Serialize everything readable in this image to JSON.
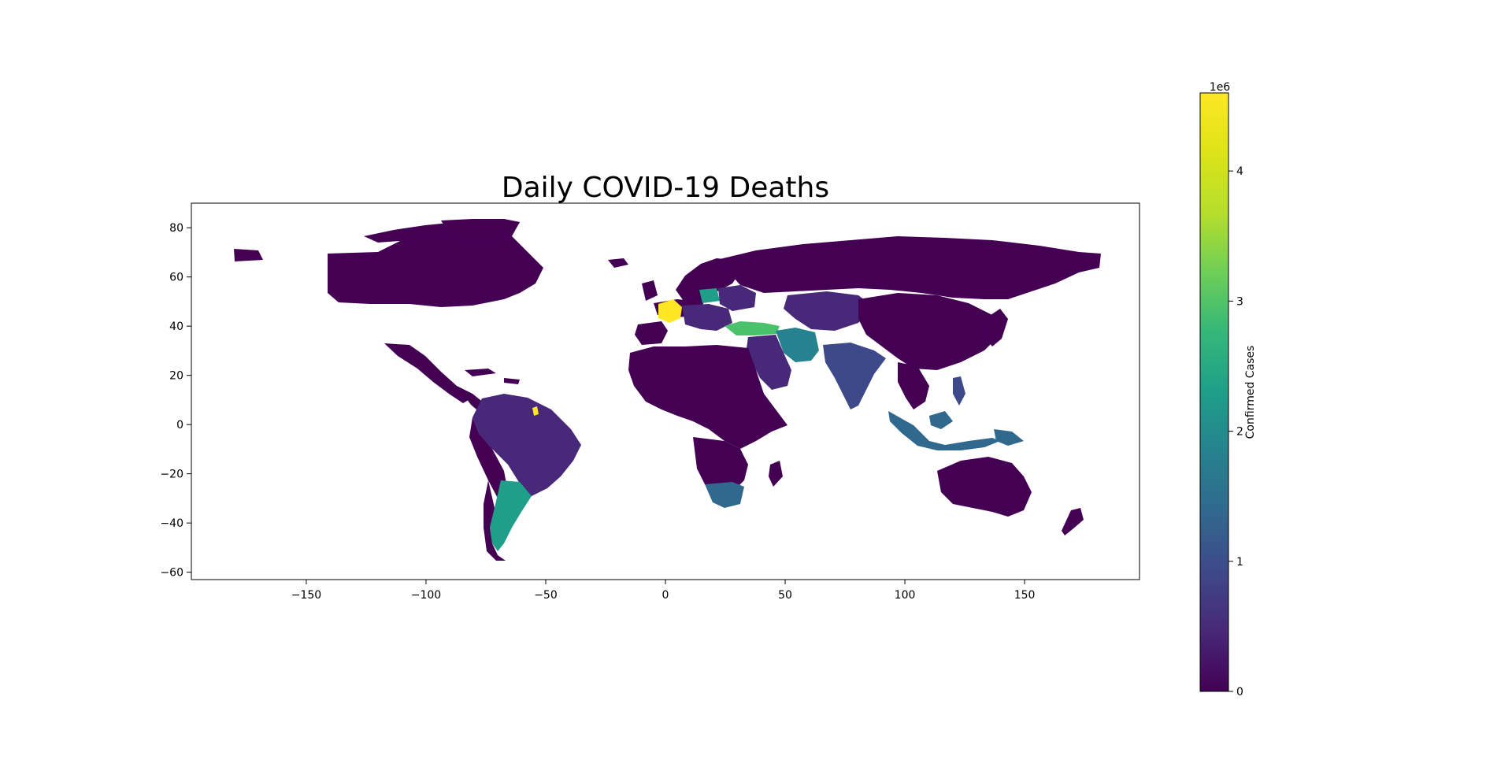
{
  "chart_data": {
    "type": "choropleth",
    "title": "Daily COVID-19 Deaths",
    "xlabel": "",
    "ylabel": "",
    "xlim": [
      -198,
      198
    ],
    "ylim": [
      -63,
      90
    ],
    "x_ticks": [
      "−150",
      "−100",
      "−50",
      "0",
      "50",
      "100",
      "150"
    ],
    "x_tick_values": [
      -150,
      -100,
      -50,
      0,
      50,
      100,
      150
    ],
    "y_ticks": [
      "80",
      "60",
      "40",
      "20",
      "0",
      "−20",
      "−40",
      "−60"
    ],
    "y_tick_values": [
      80,
      60,
      40,
      20,
      0,
      -20,
      -40,
      -60
    ],
    "colorbar": {
      "label": "Confirmed Cases",
      "multiplier": "1e6",
      "range": [
        0,
        4.6
      ],
      "tick_labels": [
        "0",
        "1",
        "2",
        "3",
        "4"
      ],
      "tick_values": [
        0,
        1,
        2,
        3,
        4
      ],
      "colormap": "viridis"
    },
    "regions": [
      {
        "name": "France",
        "value": 4.6
      },
      {
        "name": "French Guiana",
        "value": 4.6
      },
      {
        "name": "Turkey",
        "value": 3.6
      },
      {
        "name": "Poland",
        "value": 2.3
      },
      {
        "name": "Argentina",
        "value": 2.1
      },
      {
        "name": "Iran",
        "value": 1.9
      },
      {
        "name": "South Africa",
        "value": 1.5
      },
      {
        "name": "Indonesia",
        "value": 1.6
      },
      {
        "name": "Papua New Guinea",
        "value": 1.5
      },
      {
        "name": "India",
        "value": 0.9
      },
      {
        "name": "Brazil",
        "value": 0.4
      },
      {
        "name": "Russia",
        "value": 0.1
      },
      {
        "name": "United States",
        "value": 0.05
      },
      {
        "name": "Canada",
        "value": 0.05
      },
      {
        "name": "China",
        "value": 0.05
      },
      {
        "name": "Australia",
        "value": 0.05
      }
    ]
  },
  "colors": {
    "ocean": "#ffffff",
    "viridis_min": "#440154",
    "viridis_max": "#fde725"
  }
}
